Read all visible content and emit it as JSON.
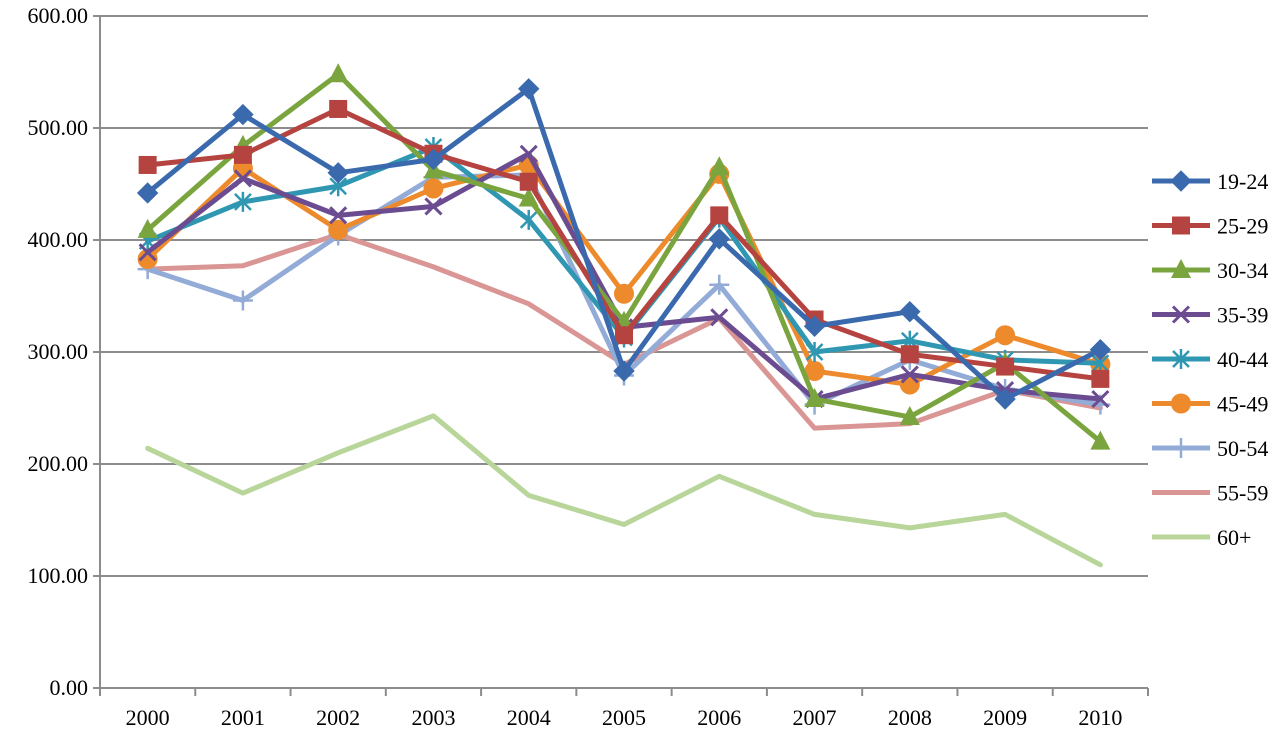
{
  "chart_data": {
    "type": "line",
    "title": "",
    "xlabel": "",
    "ylabel": "",
    "ylim": [
      0,
      600
    ],
    "y_ticks": [
      0,
      100,
      200,
      300,
      400,
      500,
      600
    ],
    "y_tick_labels": [
      "0.00",
      "100.00",
      "200.00",
      "300.00",
      "400.00",
      "500.00",
      "600.00"
    ],
    "grid": "horizontal",
    "legend_position": "right",
    "categories": [
      "2000",
      "2001",
      "2002",
      "2003",
      "2004",
      "2005",
      "2006",
      "2007",
      "2008",
      "2009",
      "2010"
    ],
    "series": [
      {
        "name": "19-24",
        "color": "#3a6aad",
        "marker": "diamond",
        "values": [
          442,
          512,
          460,
          472,
          535,
          283,
          401,
          323,
          336,
          258,
          302
        ]
      },
      {
        "name": "25-29",
        "color": "#b54441",
        "marker": "square",
        "values": [
          467,
          476,
          517,
          477,
          452,
          315,
          422,
          329,
          298,
          287,
          276
        ]
      },
      {
        "name": "30-34",
        "color": "#7aa43d",
        "marker": "triangle",
        "values": [
          409,
          484,
          548,
          462,
          437,
          327,
          465,
          258,
          242,
          290,
          220
        ]
      },
      {
        "name": "35-39",
        "color": "#6b4c91",
        "marker": "x",
        "values": [
          389,
          455,
          422,
          430,
          477,
          322,
          331,
          258,
          280,
          266,
          258
        ]
      },
      {
        "name": "40-44",
        "color": "#2f97b2",
        "marker": "asterisk",
        "values": [
          399,
          434,
          448,
          483,
          418,
          313,
          420,
          300,
          310,
          293,
          290
        ]
      },
      {
        "name": "45-49",
        "color": "#ed8a2c",
        "marker": "circle",
        "values": [
          383,
          464,
          409,
          446,
          467,
          352,
          459,
          283,
          271,
          315,
          289
        ]
      },
      {
        "name": "50-54",
        "color": "#93abd7",
        "marker": "plus",
        "values": [
          374,
          346,
          404,
          456,
          458,
          279,
          360,
          253,
          293,
          267,
          253
        ]
      },
      {
        "name": "55-59",
        "color": "#d99694",
        "marker": "dash",
        "values": [
          374,
          377,
          405,
          376,
          343,
          289,
          330,
          232,
          236,
          266,
          250
        ]
      },
      {
        "name": "60+",
        "color": "#b8d59a",
        "marker": "dash",
        "values": [
          214,
          174,
          210,
          243,
          172,
          146,
          189,
          155,
          143,
          155,
          110
        ]
      }
    ]
  }
}
